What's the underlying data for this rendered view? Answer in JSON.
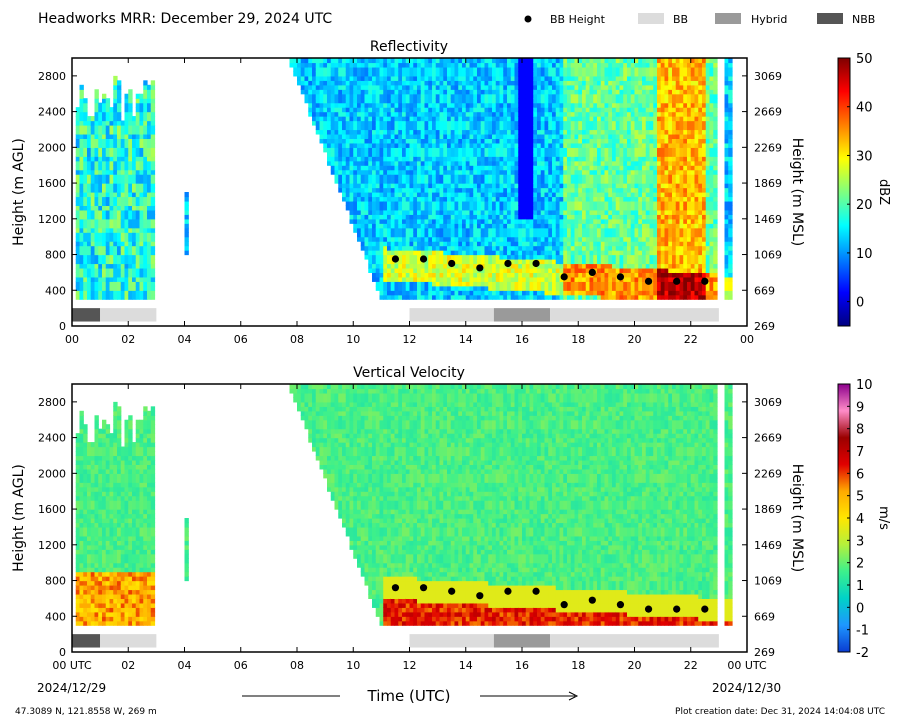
{
  "header": {
    "title": "Headworks MRR:  December 29, 2024 UTC",
    "legend": [
      {
        "label": "BB Height",
        "kind": "dot",
        "color": "#000000"
      },
      {
        "label": "BB",
        "kind": "box",
        "color": "#dcdcdc"
      },
      {
        "label": "Hybrid",
        "kind": "box",
        "color": "#9a9a9a"
      },
      {
        "label": "NBB",
        "kind": "box",
        "color": "#555555"
      }
    ]
  },
  "footer": {
    "location": "47.3089 N, 121.8558 W, 269 m",
    "creation": "Plot creation date: Dec 31, 2024 14:04:08 UTC",
    "xlabel": "Time (UTC)",
    "start_date": "2024/12/29",
    "end_date": "2024/12/30"
  },
  "colors": {
    "reflectivity": [
      "#00007f",
      "#0000ff",
      "#007fff",
      "#00ffff",
      "#7fff7f",
      "#ffff00",
      "#ff7f00",
      "#ff0000",
      "#7f0000"
    ],
    "velocity": [
      "#0a3cd2",
      "#1e96ff",
      "#00d2c8",
      "#3cf08c",
      "#b4f03c",
      "#ffe600",
      "#ffaa00",
      "#e10000",
      "#9b0000",
      "#ff8cc8",
      "#8c008c"
    ],
    "bb_class": {
      "BB": "#dcdcdc",
      "Hybrid": "#9a9a9a",
      "NBB": "#555555"
    }
  },
  "chart_data": [
    {
      "type": "heatmap",
      "title": "Reflectivity",
      "ylabel": "Height (m AGL)",
      "ylabel_right": "Height (m MSL)",
      "xlim": [
        0,
        24
      ],
      "ylim": [
        0,
        3000
      ],
      "xticks": [
        "00",
        "02",
        "04",
        "06",
        "08",
        "10",
        "12",
        "14",
        "16",
        "18",
        "20",
        "22",
        "00"
      ],
      "yticks": [
        "0",
        "400",
        "800",
        "1200",
        "1600",
        "2000",
        "2400",
        "2800"
      ],
      "yticks_right": [
        "269",
        "669",
        "1069",
        "1469",
        "1869",
        "2269",
        "2669",
        "3069"
      ],
      "colorbar": {
        "label": "dBZ",
        "vmin": -5,
        "vmax": 50,
        "ticks": [
          "0",
          "10",
          "20",
          "30",
          "40",
          "50"
        ]
      },
      "grid": false,
      "bb_height": {
        "x": [
          11.5,
          12.5,
          13.5,
          14.5,
          15.5,
          16.5,
          17.5,
          18.5,
          19.5,
          20.5,
          21.5,
          22.5
        ],
        "y": [
          750,
          750,
          700,
          650,
          700,
          700,
          550,
          600,
          550,
          500,
          500,
          500
        ]
      },
      "bb_type": [
        {
          "start": 0,
          "end": 1,
          "type": "NBB"
        },
        {
          "start": 1,
          "end": 3,
          "type": "BB"
        },
        {
          "start": 12,
          "end": 15,
          "type": "BB"
        },
        {
          "start": 15,
          "end": 17,
          "type": "Hybrid"
        },
        {
          "start": 17,
          "end": 23,
          "type": "BB"
        }
      ]
    },
    {
      "type": "heatmap",
      "title": "Vertical Velocity",
      "ylabel": "Height (m AGL)",
      "ylabel_right": "Height (m MSL)",
      "xlim": [
        0,
        24
      ],
      "ylim": [
        0,
        3000
      ],
      "xticks": [
        "00 UTC",
        "02",
        "04",
        "06",
        "08",
        "10",
        "12",
        "14",
        "16",
        "18",
        "20",
        "22",
        "00 UTC"
      ],
      "yticks": [
        "0",
        "400",
        "800",
        "1200",
        "1600",
        "2000",
        "2400",
        "2800"
      ],
      "yticks_right": [
        "269",
        "669",
        "1069",
        "1469",
        "1869",
        "2269",
        "2669",
        "3069"
      ],
      "colorbar": {
        "label": "m/s",
        "vmin": -2,
        "vmax": 10,
        "ticks": [
          "-2",
          "-1",
          "0",
          "1",
          "2",
          "3",
          "4",
          "5",
          "6",
          "7",
          "8",
          "9",
          "10"
        ]
      },
      "grid": false,
      "bb_height": {
        "x": [
          11.5,
          12.5,
          13.5,
          14.5,
          15.5,
          16.5,
          17.5,
          18.5,
          19.5,
          20.5,
          21.5,
          22.5
        ],
        "y": [
          720,
          720,
          680,
          630,
          680,
          680,
          530,
          580,
          530,
          480,
          480,
          480
        ]
      },
      "bb_type": [
        {
          "start": 0,
          "end": 1,
          "type": "NBB"
        },
        {
          "start": 1,
          "end": 3,
          "type": "BB"
        },
        {
          "start": 12,
          "end": 15,
          "type": "BB"
        },
        {
          "start": 15,
          "end": 17,
          "type": "Hybrid"
        },
        {
          "start": 17,
          "end": 23,
          "type": "BB"
        }
      ]
    }
  ]
}
